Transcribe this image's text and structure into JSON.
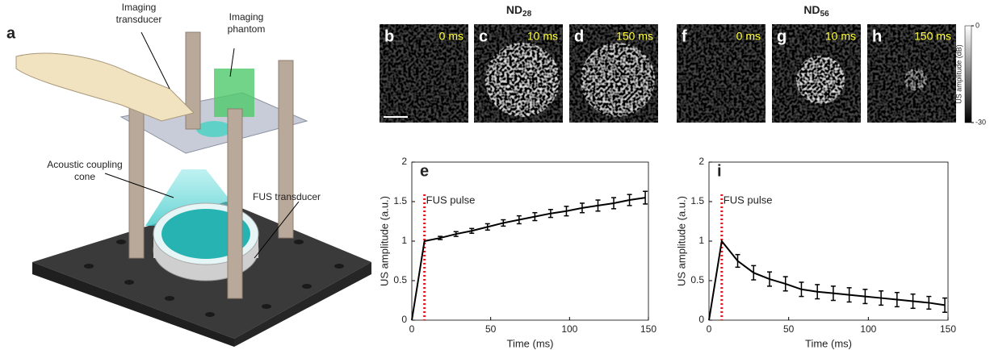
{
  "panel_a": {
    "letter": "a",
    "labels": [
      {
        "lines": [
          "Imaging",
          "transducer"
        ]
      },
      {
        "lines": [
          "Imaging",
          "phantom"
        ]
      },
      {
        "lines": [
          "Acoustic coupling",
          "cone"
        ]
      },
      {
        "lines": [
          "FUS transducer"
        ]
      }
    ]
  },
  "image_groups": [
    {
      "title": {
        "text": "ND",
        "subscript": "28"
      },
      "images": [
        {
          "letter": "b",
          "time": "0 ms"
        },
        {
          "letter": "c",
          "time": "10 ms"
        },
        {
          "letter": "d",
          "time": "150 ms"
        }
      ]
    },
    {
      "title": {
        "text": "ND",
        "subscript": "56"
      },
      "images": [
        {
          "letter": "f",
          "time": "0 ms"
        },
        {
          "letter": "g",
          "time": "10 ms"
        },
        {
          "letter": "h",
          "time": "150 ms"
        }
      ]
    }
  ],
  "scale_bar": "1 mm",
  "colorbar": {
    "label": "US amplitude (dB)",
    "lim": [
      -30,
      0
    ],
    "ticks": [
      0,
      -30
    ]
  },
  "chart_data": [
    {
      "type": "line",
      "letter": "e",
      "x_label": "Time (ms)",
      "y_label": "US amplitude (a.u.)",
      "annotation": {
        "text": "FUS pulse",
        "x": 8,
        "color": "#e3161e"
      },
      "x": [
        0,
        8,
        18,
        28,
        38,
        48,
        58,
        68,
        78,
        88,
        98,
        108,
        118,
        128,
        138,
        148
      ],
      "series": [
        {
          "color": "#000000",
          "values": [
            0,
            1,
            1.04,
            1.09,
            1.13,
            1.18,
            1.23,
            1.27,
            1.31,
            1.35,
            1.38,
            1.42,
            1.45,
            1.48,
            1.52,
            1.55
          ],
          "errors": [
            null,
            null,
            0.02,
            0.03,
            0.03,
            0.04,
            0.04,
            0.05,
            0.05,
            0.05,
            0.06,
            0.06,
            0.07,
            0.07,
            0.07,
            0.08
          ]
        }
      ],
      "xlim": [
        0,
        150
      ],
      "xticks": [
        0,
        50,
        100,
        150
      ],
      "ylim": [
        0,
        2
      ],
      "yticks": [
        0,
        0.5,
        1,
        1.5,
        2
      ]
    },
    {
      "type": "line",
      "letter": "i",
      "x_label": "Time (ms)",
      "y_label": "US amplitude (a.u.)",
      "annotation": {
        "text": "FUS pulse",
        "x": 8,
        "color": "#e3161e"
      },
      "x": [
        0,
        8,
        18,
        28,
        38,
        48,
        58,
        68,
        78,
        88,
        98,
        108,
        118,
        128,
        138,
        148
      ],
      "series": [
        {
          "color": "#000000",
          "values": [
            0,
            1,
            0.75,
            0.6,
            0.52,
            0.46,
            0.39,
            0.36,
            0.34,
            0.32,
            0.3,
            0.28,
            0.26,
            0.24,
            0.22,
            0.19
          ],
          "errors": [
            null,
            null,
            0.08,
            0.09,
            0.09,
            0.09,
            0.09,
            0.09,
            0.09,
            0.09,
            0.09,
            0.09,
            0.09,
            0.09,
            0.08,
            0.09
          ]
        }
      ],
      "xlim": [
        0,
        150
      ],
      "xticks": [
        0,
        50,
        100,
        150
      ],
      "ylim": [
        0,
        2
      ],
      "yticks": [
        0,
        0.5,
        1,
        1.5,
        2
      ]
    }
  ]
}
